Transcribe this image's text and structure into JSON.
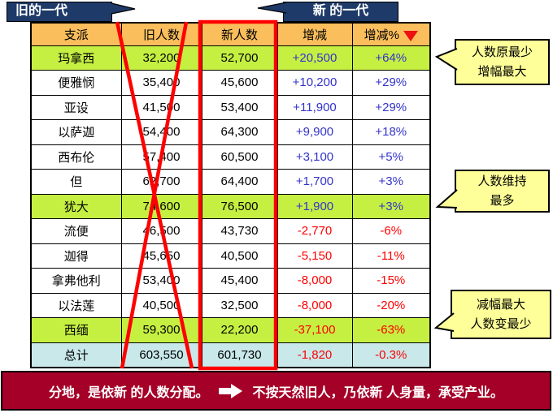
{
  "banners": {
    "old_generation": "旧的一代",
    "new_generation": "新 的一代"
  },
  "table": {
    "columns": [
      {
        "label": "支派"
      },
      {
        "label": "旧人数"
      },
      {
        "label": "新人数"
      },
      {
        "label": "增减"
      },
      {
        "label": "增减%",
        "sort_icon": "red-down-triangle"
      }
    ],
    "rows": [
      {
        "cells": [
          "玛拿西",
          "32,200",
          "52,700",
          "+20,500",
          "+64%"
        ],
        "direction": "up",
        "highlight": "green"
      },
      {
        "cells": [
          "便雅悯",
          "35,400",
          "45,600",
          "+10,200",
          "+29%"
        ],
        "direction": "up",
        "highlight": null
      },
      {
        "cells": [
          "亚设",
          "41,500",
          "53,400",
          "+11,900",
          "+29%"
        ],
        "direction": "up",
        "highlight": null
      },
      {
        "cells": [
          "以萨迦",
          "54,400",
          "64,300",
          "+9,900",
          "+18%"
        ],
        "direction": "up",
        "highlight": null
      },
      {
        "cells": [
          "西布伦",
          "57,400",
          "60,500",
          "+3,100",
          "+5%"
        ],
        "direction": "up",
        "highlight": null
      },
      {
        "cells": [
          "但",
          "62,700",
          "64,400",
          "+1,700",
          "+3%"
        ],
        "direction": "up",
        "highlight": null
      },
      {
        "cells": [
          "犹大",
          "74,600",
          "76,500",
          "+1,900",
          "+3%"
        ],
        "direction": "up",
        "highlight": "green"
      },
      {
        "cells": [
          "流便",
          "46,500",
          "43,730",
          "-2,770",
          "-6%"
        ],
        "direction": "down",
        "highlight": null
      },
      {
        "cells": [
          "迦得",
          "45,650",
          "40,500",
          "-5,150",
          "-11%"
        ],
        "direction": "down",
        "highlight": null
      },
      {
        "cells": [
          "拿弗他利",
          "53,400",
          "45,400",
          "-8,000",
          "-15%"
        ],
        "direction": "down",
        "highlight": null
      },
      {
        "cells": [
          "以法莲",
          "40,500",
          "32,500",
          "-8,000",
          "-20%"
        ],
        "direction": "down",
        "highlight": null
      },
      {
        "cells": [
          "西缅",
          "59,300",
          "22,200",
          "-37,100",
          "-63%"
        ],
        "direction": "down",
        "highlight": "green"
      },
      {
        "cells": [
          "总计",
          "603,550",
          "601,730",
          "-1,820",
          "-0.3%"
        ],
        "direction": "down",
        "highlight": "total"
      }
    ]
  },
  "callouts": [
    {
      "lines": [
        "人数原最少",
        "增幅最大"
      ]
    },
    {
      "lines": [
        "人数维持",
        "最多"
      ]
    },
    {
      "lines": [
        "减幅最大",
        "人数变最少"
      ]
    }
  ],
  "footer": {
    "text_left": "分地，是依新 的人数分配。",
    "text_right": "不按天然旧人，乃依新 人身量，承受产业。"
  },
  "colors": {
    "banner_navy": "#1E3A68",
    "header_orange": "#FBBE5C",
    "highlight_green": "#C5F042",
    "total_blue": "#C8E8EA",
    "callout_yellow": "#FFFF99",
    "footer_red": "#A50028",
    "positive_text": "#3333CC",
    "negative_text": "#FF0000",
    "annotation_red": "#FF0000"
  }
}
